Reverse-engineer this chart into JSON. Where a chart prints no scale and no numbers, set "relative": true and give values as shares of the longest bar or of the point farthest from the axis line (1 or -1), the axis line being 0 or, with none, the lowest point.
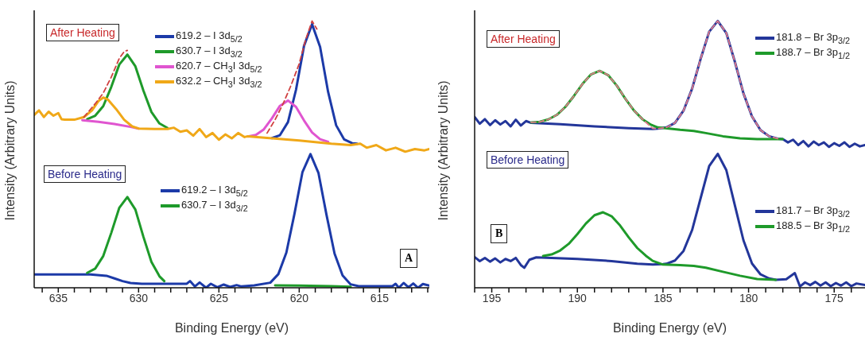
{
  "chart_data": [
    {
      "type": "line",
      "relative": true,
      "xlabel": "Binding Energy (eV)",
      "ylabel": "Intensity (Arbitrary Units)",
      "legend": "top",
      "tick_labels": "x",
      "xlim": [
        636.5,
        611.9
      ],
      "xticks": [
        {
          "value": 636,
          "label": null
        },
        635,
        {
          "value": 634,
          "label": null
        },
        {
          "value": 633,
          "label": null
        },
        {
          "value": 632,
          "label": null
        },
        {
          "value": 631,
          "label": null
        },
        630,
        {
          "value": 629,
          "label": null
        },
        {
          "value": 628,
          "label": null
        },
        {
          "value": 627,
          "label": null
        },
        {
          "value": 626,
          "label": null
        },
        625,
        {
          "value": 624,
          "label": null
        },
        {
          "value": 623,
          "label": null
        },
        {
          "value": 622,
          "label": null
        },
        {
          "value": 621,
          "label": null
        },
        620,
        {
          "value": 619,
          "label": null
        },
        {
          "value": 618,
          "label": null
        },
        {
          "value": 617,
          "label": null
        },
        {
          "value": 616,
          "label": null
        },
        615,
        {
          "value": 614,
          "label": null
        },
        {
          "value": 613,
          "label": null
        },
        {
          "value": 612,
          "label": null
        }
      ],
      "annotations": [
        "After Heating",
        "Before Heating",
        "A"
      ],
      "series": [
        {
          "name": "619.2 – I 3d$_{5/2}$",
          "color": "#1c3aa8",
          "x": [
            621.7,
            621.2,
            620.7,
            620.2,
            619.7,
            619.2,
            618.7,
            618.2,
            617.7,
            617.2,
            616.7,
            616.4
          ],
          "values": [
            0.561,
            0.572,
            0.621,
            0.742,
            0.907,
            0.988,
            0.903,
            0.734,
            0.609,
            0.556,
            0.542,
            0.54
          ]
        },
        {
          "name": "630.7 – I 3d$_{3/2}$",
          "color": "#1e9a2a",
          "x": [
            633.2,
            632.7,
            632.2,
            631.7,
            631.2,
            630.7,
            630.2,
            629.7,
            629.2,
            628.7,
            628.2
          ],
          "values": [
            0.632,
            0.645,
            0.681,
            0.753,
            0.837,
            0.874,
            0.83,
            0.739,
            0.659,
            0.616,
            0.599
          ]
        },
        {
          "name": "620.7 – CH$_{3}$I 3d$_{5/2}$",
          "color": "#e055d0",
          "x": [
            633.5,
            632.5,
            631.5,
            630.5,
            630.0,
            627.0,
            623.2,
            622.7,
            622.2,
            621.7,
            621.2,
            620.7,
            620.2,
            619.7,
            619.2,
            618.7,
            618.2
          ],
          "values": [
            0.628,
            0.622,
            0.614,
            0.603,
            0.597,
            null,
            0.567,
            0.573,
            0.594,
            0.635,
            0.682,
            0.702,
            0.678,
            0.627,
            0.582,
            0.557,
            0.547
          ]
        },
        {
          "name": "632.2 – CH$_{3}$I 3d$_{3/2}$",
          "color": "#f0a818",
          "x": [
            636.5,
            636.2,
            635.9,
            635.6,
            635.3,
            635.0,
            634.8,
            634.6,
            634.0,
            633.4,
            632.9,
            632.5,
            632.2,
            631.9,
            631.4,
            630.9,
            630.4,
            630.0,
            629.0,
            628.2,
            627.8,
            627.4,
            627.0,
            626.6,
            626.2,
            625.8,
            625.4,
            625.0,
            624.6,
            624.2,
            623.8,
            623.4,
            623.2,
            622.0,
            620.0,
            618.0,
            616.8,
            616.2,
            615.8,
            615.2,
            614.6,
            614.0,
            613.4,
            612.8,
            612.2,
            611.9
          ],
          "values": [
            0.648,
            0.665,
            0.64,
            0.66,
            0.645,
            0.655,
            0.632,
            0.63,
            0.63,
            0.64,
            0.665,
            0.7,
            0.713,
            0.705,
            0.67,
            0.63,
            0.605,
            0.597,
            0.595,
            0.595,
            0.6,
            0.585,
            0.59,
            0.57,
            0.595,
            0.565,
            0.58,
            0.555,
            0.575,
            0.56,
            0.58,
            0.565,
            0.568,
            0.562,
            0.552,
            0.54,
            0.535,
            0.54,
            0.525,
            0.535,
            0.515,
            0.525,
            0.51,
            0.52,
            0.515,
            0.52
          ]
        },
        {
          "color": "#d04040",
          "line_style": "dashed",
          "x": [
            633.4,
            632.7,
            632.2,
            631.7,
            631.2,
            630.9,
            630.7,
            626.0,
            622.0,
            621.5,
            621.0,
            620.5,
            620.0,
            619.6,
            619.2,
            618.9
          ],
          "values": [
            0.64,
            0.69,
            0.73,
            0.79,
            0.86,
            0.885,
            0.89,
            null,
            0.58,
            0.63,
            0.69,
            0.76,
            0.84,
            0.93,
            1.0,
            0.97
          ]
        },
        {
          "name": "619.2 – I 3d$_{5/2}$",
          "color": "#1c3aa8",
          "x": [
            636.5,
            633.0,
            632.0,
            631.5,
            631.0,
            630.5,
            629.8,
            627.0,
            626.8,
            626.5,
            626.2,
            625.8,
            625.5,
            625.1,
            624.7,
            624.3,
            623.9,
            623.6,
            622.8,
            621.8,
            621.3,
            620.8,
            620.3,
            619.8,
            619.3,
            618.8,
            618.3,
            617.8,
            617.3,
            616.8,
            616.3,
            614.2,
            614.0,
            613.8,
            613.5,
            613.2,
            612.9,
            612.6,
            612.3,
            611.9
          ],
          "values": [
            0.05,
            0.05,
            0.045,
            0.035,
            0.025,
            0.018,
            0.015,
            0.015,
            0.025,
            0.005,
            0.02,
            0.0,
            0.015,
            0.002,
            0.012,
            0.003,
            0.01,
            0.005,
            0.009,
            0.019,
            0.051,
            0.132,
            0.276,
            0.433,
            0.501,
            0.43,
            0.273,
            0.128,
            0.046,
            0.013,
            0.006,
            0.006,
            0.015,
            0.0,
            0.018,
            0.002,
            0.016,
            0.0,
            0.014,
            0.008
          ]
        },
        {
          "name": "630.7 – I 3d$_{3/2}$",
          "color": "#1e9a2a",
          "x": [
            633.2,
            632.7,
            632.2,
            631.7,
            631.2,
            630.7,
            630.2,
            629.7,
            629.2,
            628.7,
            628.4,
            625.0,
            621.5,
            620.0,
            618.0,
            616.8
          ],
          "values": [
            0.056,
            0.072,
            0.119,
            0.206,
            0.3,
            0.34,
            0.293,
            0.191,
            0.097,
            0.043,
            0.025,
            null,
            0.009,
            0.008,
            0.006,
            0.004
          ]
        }
      ]
    },
    {
      "type": "line",
      "relative": true,
      "xlabel": "Binding Energy (eV)",
      "ylabel": "Intensity (Arbitrary Units)",
      "legend": "top right",
      "tick_labels": "x",
      "xlim": [
        196,
        173.2
      ],
      "xticks": [
        {
          "value": 196,
          "label": null
        },
        195,
        {
          "value": 194,
          "label": null
        },
        {
          "value": 193,
          "label": null
        },
        {
          "value": 192,
          "label": null
        },
        {
          "value": 191,
          "label": null
        },
        190,
        {
          "value": 189,
          "label": null
        },
        {
          "value": 188,
          "label": null
        },
        {
          "value": 187,
          "label": null
        },
        {
          "value": 186,
          "label": null
        },
        185,
        {
          "value": 184,
          "label": null
        },
        {
          "value": 183,
          "label": null
        },
        {
          "value": 182,
          "label": null
        },
        {
          "value": 181,
          "label": null
        },
        180,
        {
          "value": 179,
          "label": null
        },
        {
          "value": 178,
          "label": null
        },
        {
          "value": 177,
          "label": null
        },
        {
          "value": 176,
          "label": null
        },
        175,
        {
          "value": 174,
          "label": null
        }
      ],
      "annotations": [
        "After Heating",
        "Before Heating",
        "B"
      ],
      "series": [
        {
          "name": "181.8 – Br 3p$_{3/2}$",
          "color": "#23369a",
          "x": [
            196.0,
            195.7,
            195.4,
            195.1,
            194.8,
            194.5,
            194.2,
            193.9,
            193.6,
            193.3,
            193.0,
            192.7,
            191.0,
            189.0,
            187.0,
            185.6,
            185.3,
            184.8,
            184.3,
            183.8,
            183.3,
            182.8,
            182.3,
            181.8,
            181.3,
            180.8,
            180.3,
            179.8,
            179.3,
            178.8,
            178.3,
            178.0,
            177.7,
            177.4,
            177.1,
            176.8,
            176.5,
            176.2,
            175.9,
            175.6,
            175.3,
            175.0,
            174.7,
            174.4,
            174.1,
            173.8,
            173.5,
            173.2
          ],
          "values": [
            0.64,
            0.615,
            0.632,
            0.61,
            0.628,
            0.612,
            0.625,
            0.605,
            0.63,
            0.608,
            0.625,
            0.618,
            0.613,
            0.605,
            0.598,
            0.595,
            0.597,
            0.601,
            0.618,
            0.664,
            0.746,
            0.858,
            0.96,
            1.0,
            0.955,
            0.847,
            0.729,
            0.642,
            0.591,
            0.568,
            0.559,
            0.557,
            0.545,
            0.555,
            0.535,
            0.55,
            0.53,
            0.548,
            0.535,
            0.545,
            0.528,
            0.542,
            0.532,
            0.545,
            0.528,
            0.54,
            0.53,
            0.535
          ]
        },
        {
          "name": "188.7 – Br 3p$_{1/2}$",
          "color": "#1e9a2a",
          "x": [
            192.7,
            192.2,
            191.7,
            191.2,
            190.7,
            190.2,
            189.7,
            189.2,
            188.7,
            188.2,
            187.7,
            187.2,
            186.7,
            186.2,
            185.7,
            185.3,
            184.0,
            183.2,
            182.5,
            181.5,
            180.5,
            179.5,
            178.0
          ],
          "values": [
            0.62,
            0.622,
            0.631,
            0.648,
            0.678,
            0.719,
            0.764,
            0.8,
            0.813,
            0.797,
            0.758,
            0.709,
            0.665,
            0.632,
            0.611,
            0.601,
            0.592,
            0.588,
            0.58,
            0.568,
            0.56,
            0.557,
            0.557
          ]
        },
        {
          "color": "#e07a8a",
          "line_style": "dashed",
          "x": [
            192.7,
            192.2,
            191.7,
            191.2,
            190.7,
            190.2,
            189.7,
            189.2,
            188.7,
            188.2,
            187.7,
            187.2,
            186.7,
            186.2,
            185.6,
            185.3,
            184.8,
            184.3,
            183.8,
            183.3,
            182.8,
            182.3,
            181.8,
            181.3,
            180.8,
            180.3,
            179.8,
            179.3,
            178.8,
            178.3
          ],
          "values": [
            0.62,
            0.622,
            0.631,
            0.648,
            0.678,
            0.719,
            0.764,
            0.8,
            0.813,
            0.797,
            0.758,
            0.709,
            0.665,
            0.632,
            0.597,
            0.597,
            0.601,
            0.618,
            0.664,
            0.746,
            0.858,
            0.96,
            1.0,
            0.955,
            0.847,
            0.729,
            0.642,
            0.591,
            0.568,
            0.559
          ]
        },
        {
          "name": "181.7 – Br 3p$_{3/2}$",
          "color": "#23369a",
          "x": [
            196.0,
            195.7,
            195.4,
            195.1,
            194.8,
            194.5,
            194.2,
            193.9,
            193.6,
            193.3,
            193.1,
            192.8,
            192.4,
            190.0,
            188.0,
            186.5,
            185.6,
            185.0,
            184.8,
            184.3,
            183.8,
            183.3,
            182.8,
            182.3,
            181.8,
            181.3,
            180.8,
            180.3,
            179.8,
            179.3,
            178.8,
            178.4,
            177.8,
            177.3,
            177.0,
            176.7,
            176.4,
            176.1,
            175.8,
            175.5,
            175.2,
            174.9,
            174.6,
            174.3,
            174.0,
            173.7,
            173.2
          ],
          "values": [
            0.115,
            0.1,
            0.112,
            0.098,
            0.11,
            0.095,
            0.108,
            0.1,
            0.112,
            0.085,
            0.075,
            0.105,
            0.114,
            0.108,
            0.1,
            0.09,
            0.087,
            0.089,
            0.09,
            0.102,
            0.138,
            0.216,
            0.336,
            0.456,
            0.502,
            0.441,
            0.309,
            0.178,
            0.091,
            0.05,
            0.035,
            0.03,
            0.032,
            0.055,
            0.005,
            0.02,
            0.01,
            0.022,
            0.008,
            0.02,
            0.006,
            0.018,
            0.008,
            0.02,
            0.006,
            0.016,
            0.01
          ]
        },
        {
          "name": "188.5 – Br 3p$_{1/2}$",
          "color": "#1e9a2a",
          "x": [
            192.0,
            191.5,
            191.0,
            190.5,
            190.0,
            189.5,
            189.0,
            188.5,
            188.0,
            187.5,
            187.0,
            186.5,
            186.0,
            185.6,
            185.0,
            184.0,
            183.2,
            182.5,
            181.5,
            180.5,
            179.5,
            178.4
          ],
          "values": [
            0.119,
            0.125,
            0.14,
            0.165,
            0.201,
            0.241,
            0.272,
            0.283,
            0.268,
            0.233,
            0.189,
            0.149,
            0.12,
            0.101,
            0.087,
            0.085,
            0.082,
            0.075,
            0.06,
            0.045,
            0.033,
            0.03
          ]
        }
      ]
    }
  ]
}
